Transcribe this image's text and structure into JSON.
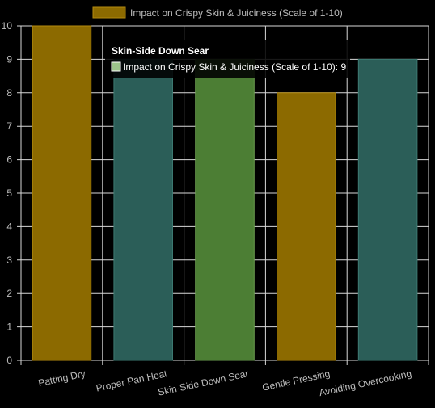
{
  "chart_data": {
    "type": "bar",
    "categories": [
      "Patting Dry",
      "Proper Pan Heat",
      "Skin-Side Down Sear",
      "Gentle Pressing",
      "Avoiding Overcooking"
    ],
    "series": [
      {
        "name": "Impact on Crispy Skin & Juiciness (Scale of 1-10)",
        "values": [
          10,
          9,
          9,
          8,
          9
        ]
      }
    ],
    "ylim": [
      0,
      10
    ],
    "yticks": [
      0,
      1,
      2,
      3,
      4,
      5,
      6,
      7,
      8,
      9,
      10
    ],
    "grid": true,
    "legend_position": "top",
    "bar_colors": [
      "#8c6a00",
      "#2b5e58",
      "#4c7e34",
      "#8c6a00",
      "#2b5e58"
    ],
    "bar_border_colors": [
      "#b38a0e",
      "#3d7a72",
      "#6a9c4e",
      "#b38a0e",
      "#3d7a72"
    ],
    "legend_swatch_color": "#8c6a00",
    "grid_color": "#d8d8d8",
    "axis_text_color": "#bdbdbd",
    "tooltip": {
      "title": "Skin-Side Down Sear",
      "line": "Impact on Crispy Skin & Juiciness (Scale of 1-10): 9",
      "swatch_color": "#9cc38a"
    }
  }
}
